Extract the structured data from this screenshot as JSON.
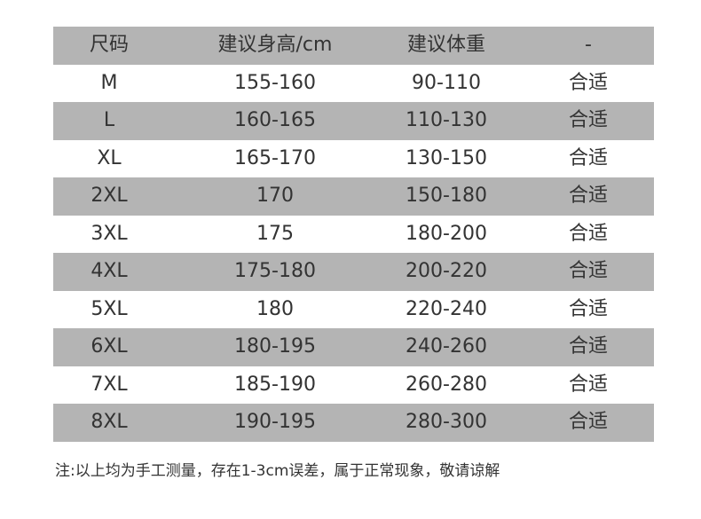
{
  "header": [
    "尺码",
    "建议身高/cm",
    "建议体重",
    "-"
  ],
  "rows": [
    [
      "M",
      "155-160",
      "90-110",
      "合适"
    ],
    [
      "L",
      "160-165",
      "110-130",
      "合适"
    ],
    [
      "XL",
      "165-170",
      "130-150",
      "合适"
    ],
    [
      "2XL",
      "170",
      "150-180",
      "合适"
    ],
    [
      "3XL",
      "175",
      "180-200",
      "合适"
    ],
    [
      "4XL",
      "175-180",
      "200-220",
      "合适"
    ],
    [
      "5XL",
      "180",
      "220-240",
      "合适"
    ],
    [
      "6XL",
      "180-195",
      "240-260",
      "合适"
    ],
    [
      "7XL",
      "185-190",
      "260-280",
      "合适"
    ],
    [
      "8XL",
      "190-195",
      "280-300",
      "合适"
    ]
  ],
  "note": "注:以上均为手工测量，存在1-3cm误差，属于正常现象，敬请谅解",
  "colors": {
    "stripe": "#b4b4b4",
    "text": "#333333"
  }
}
